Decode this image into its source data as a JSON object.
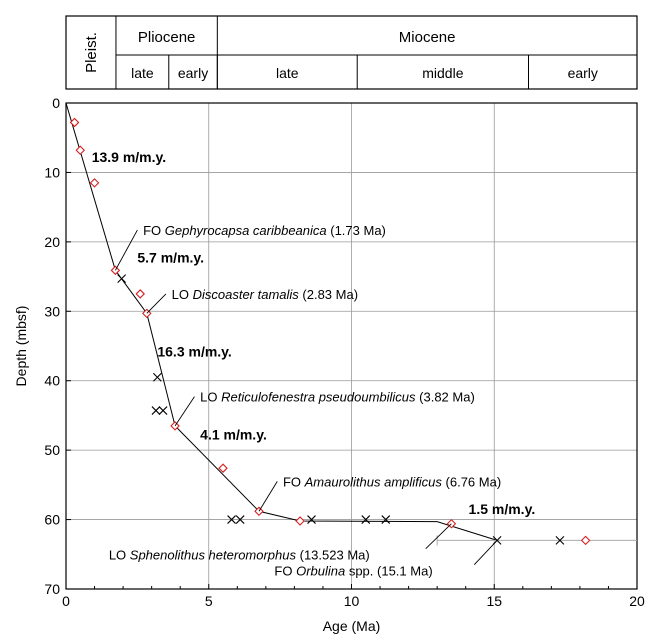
{
  "colors": {
    "diamond": "#d62020",
    "cross": "#000000",
    "grid": "#999999",
    "line": "#000000"
  },
  "chart_data": {
    "type": "scatter",
    "xlabel": "Age (Ma)",
    "ylabel": "Depth (mbsf)",
    "xlim": [
      0,
      20
    ],
    "ylim": [
      70,
      0
    ],
    "x_ticks": [
      "0",
      "5",
      "10",
      "15",
      "20"
    ],
    "y_ticks": [
      "0",
      "10",
      "20",
      "30",
      "40",
      "50",
      "60",
      "70"
    ],
    "grid": true,
    "timescale": {
      "epochs": [
        {
          "name": "Pleist.",
          "start": 0,
          "end": 1.75
        },
        {
          "name": "Pliocene",
          "start": 1.75,
          "end": 5.3
        },
        {
          "name": "Miocene",
          "start": 5.3,
          "end": 20
        }
      ],
      "subdivisions": [
        {
          "name": "late",
          "start": 1.75,
          "end": 3.6
        },
        {
          "name": "early",
          "start": 3.6,
          "end": 5.3
        },
        {
          "name": "late",
          "start": 5.3,
          "end": 10.2
        },
        {
          "name": "middle",
          "start": 10.2,
          "end": 16.2
        },
        {
          "name": "early",
          "start": 16.2,
          "end": 20
        }
      ]
    },
    "series": [
      {
        "marker": "diamond",
        "points": [
          [
            0.3,
            2.8
          ],
          [
            0.5,
            6.8
          ],
          [
            1.0,
            11.5
          ],
          [
            1.73,
            24.1
          ],
          [
            2.6,
            27.5
          ],
          [
            2.83,
            30.3
          ],
          [
            3.82,
            46.5
          ],
          [
            5.5,
            52.6
          ],
          [
            6.76,
            58.8
          ],
          [
            8.2,
            60.2
          ],
          [
            13.5,
            60.6
          ],
          [
            18.2,
            63.0
          ]
        ]
      },
      {
        "marker": "cross",
        "points": [
          [
            1.95,
            25.3
          ],
          [
            3.2,
            39.5
          ],
          [
            3.15,
            44.3
          ],
          [
            3.4,
            44.3
          ],
          [
            5.8,
            60.0
          ],
          [
            6.1,
            60.0
          ],
          [
            8.6,
            60.0
          ],
          [
            10.5,
            60.0
          ],
          [
            11.2,
            60.0
          ],
          [
            15.1,
            63.0
          ],
          [
            17.3,
            63.0
          ]
        ]
      }
    ],
    "trend_line": [
      [
        0,
        0
      ],
      [
        1.73,
        24.1
      ],
      [
        2.83,
        30.3
      ],
      [
        3.82,
        46.5
      ],
      [
        6.76,
        58.8
      ],
      [
        8.2,
        60.2
      ],
      [
        13.0,
        60.3
      ],
      [
        15.1,
        63.0
      ]
    ],
    "error_bar": {
      "x": [
        13.0,
        20.0
      ],
      "y": 63.0
    },
    "rate_labels": [
      {
        "text": "13.9 m/m.y.",
        "x": 0.9,
        "y": 8.5
      },
      {
        "text": "5.7 m/m.y.",
        "x": 2.5,
        "y": 23.0
      },
      {
        "text": "16.3 m/m.y.",
        "x": 3.2,
        "y": 36.5
      },
      {
        "text": "4.1 m/m.y.",
        "x": 4.7,
        "y": 48.5
      },
      {
        "text": "1.5 m/m.y.",
        "x": 14.1,
        "y": 59.2
      }
    ],
    "annotations": [
      {
        "prefix": "FO ",
        "taxon": "Gephyrocapsa caribbeanica",
        "suffix": " (1.73 Ma)",
        "text_at": [
          2.7,
          18.3
        ],
        "line_from": [
          2.5,
          18.3
        ],
        "line_to": [
          1.73,
          24.1
        ]
      },
      {
        "prefix": "LO ",
        "taxon": "Discoaster tamalis",
        "suffix": " (2.83 Ma)",
        "text_at": [
          3.7,
          27.5
        ],
        "line_from": [
          3.5,
          27.5
        ],
        "line_to": [
          2.83,
          30.3
        ]
      },
      {
        "prefix": "LO ",
        "taxon": "Reticulofenestra pseudoumbilicus",
        "suffix": " (3.82 Ma)",
        "text_at": [
          4.7,
          42.3
        ],
        "line_from": [
          4.5,
          42.3
        ],
        "line_to": [
          3.82,
          46.5
        ]
      },
      {
        "prefix": "FO ",
        "taxon": "Amaurolithus amplificus",
        "suffix": " (6.76 Ma)",
        "text_at": [
          7.6,
          54.5
        ],
        "line_from": [
          7.4,
          54.5
        ],
        "line_to": [
          6.76,
          58.8
        ]
      },
      {
        "prefix": "LO ",
        "taxon": "Sphenolithus heteromorphus",
        "suffix": " (13.523 Ma)",
        "text_at": [
          1.5,
          65.0
        ],
        "line_from": [
          12.6,
          64.2
        ],
        "line_to": [
          13.5,
          60.6
        ]
      },
      {
        "prefix": "FO ",
        "taxon": "Orbulina",
        "suffix": " spp. (15.1 Ma)",
        "text_at": [
          7.3,
          67.3
        ],
        "line_from": [
          14.3,
          66.5
        ],
        "line_to": [
          15.1,
          63.0
        ]
      }
    ]
  }
}
